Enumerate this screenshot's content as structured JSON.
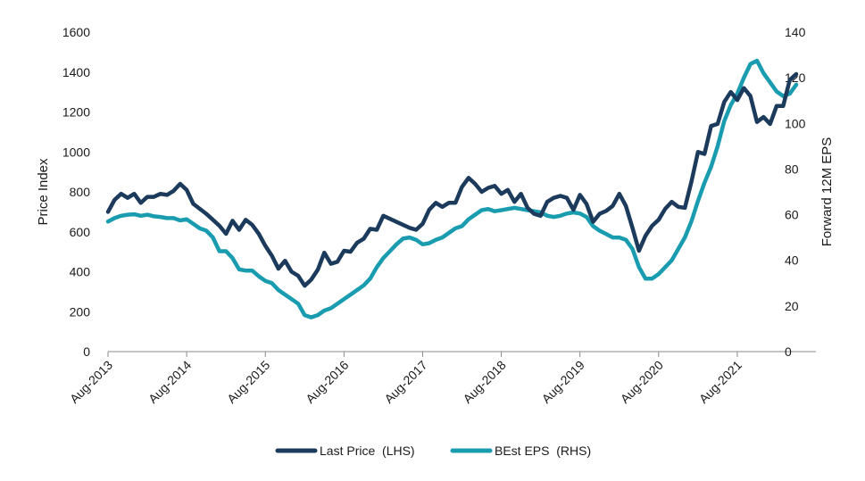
{
  "chart_data": {
    "type": "line",
    "xlabel": "",
    "y_left_label": "Price Index",
    "y_right_label": "Forward 12M EPS",
    "x_ticks": [
      "Aug-2013",
      "Aug-2014",
      "Aug-2015",
      "Aug-2016",
      "Aug-2017",
      "Aug-2018",
      "Aug-2019",
      "Aug-2020",
      "Aug-2021"
    ],
    "y_left_ticks": [
      "0",
      "200",
      "400",
      "600",
      "800",
      "1000",
      "1200",
      "1400",
      "1600"
    ],
    "y_right_ticks": [
      "0",
      "20",
      "40",
      "60",
      "80",
      "100",
      "120",
      "140"
    ],
    "y_left_lim": [
      0,
      1600
    ],
    "y_right_lim": [
      0,
      140
    ],
    "x_lim_months": [
      0,
      102
    ],
    "grid": false,
    "legend_position": "bottom",
    "series": [
      {
        "name": "Last Price  (LHS)",
        "axis": "left",
        "color": "#1b3a5c",
        "points": [
          [
            0,
            700
          ],
          [
            1,
            760
          ],
          [
            2,
            790
          ],
          [
            3,
            770
          ],
          [
            4,
            790
          ],
          [
            5,
            745
          ],
          [
            6,
            775
          ],
          [
            7,
            775
          ],
          [
            8,
            790
          ],
          [
            9,
            785
          ],
          [
            10,
            805
          ],
          [
            11,
            840
          ],
          [
            12,
            810
          ],
          [
            13,
            740
          ],
          [
            14,
            715
          ],
          [
            15,
            690
          ],
          [
            16,
            660
          ],
          [
            17,
            630
          ],
          [
            18,
            590
          ],
          [
            19,
            655
          ],
          [
            20,
            610
          ],
          [
            21,
            660
          ],
          [
            22,
            635
          ],
          [
            23,
            590
          ],
          [
            24,
            530
          ],
          [
            25,
            480
          ],
          [
            26,
            415
          ],
          [
            27,
            455
          ],
          [
            28,
            400
          ],
          [
            29,
            380
          ],
          [
            30,
            330
          ],
          [
            31,
            360
          ],
          [
            32,
            410
          ],
          [
            33,
            495
          ],
          [
            34,
            440
          ],
          [
            35,
            450
          ],
          [
            36,
            505
          ],
          [
            37,
            500
          ],
          [
            38,
            545
          ],
          [
            39,
            565
          ],
          [
            40,
            615
          ],
          [
            41,
            610
          ],
          [
            42,
            680
          ],
          [
            43,
            665
          ],
          [
            44,
            650
          ],
          [
            45,
            635
          ],
          [
            46,
            620
          ],
          [
            47,
            610
          ],
          [
            48,
            640
          ],
          [
            49,
            710
          ],
          [
            50,
            745
          ],
          [
            51,
            725
          ],
          [
            52,
            745
          ],
          [
            53,
            745
          ],
          [
            54,
            825
          ],
          [
            55,
            870
          ],
          [
            56,
            840
          ],
          [
            57,
            800
          ],
          [
            58,
            820
          ],
          [
            59,
            830
          ],
          [
            60,
            790
          ],
          [
            61,
            810
          ],
          [
            62,
            750
          ],
          [
            63,
            790
          ],
          [
            64,
            720
          ],
          [
            65,
            690
          ],
          [
            66,
            680
          ],
          [
            67,
            750
          ],
          [
            68,
            770
          ],
          [
            69,
            780
          ],
          [
            70,
            770
          ],
          [
            71,
            710
          ],
          [
            72,
            785
          ],
          [
            73,
            740
          ],
          [
            74,
            650
          ],
          [
            75,
            690
          ],
          [
            76,
            705
          ],
          [
            77,
            730
          ],
          [
            78,
            790
          ],
          [
            79,
            730
          ],
          [
            80,
            620
          ],
          [
            81,
            505
          ],
          [
            82,
            580
          ],
          [
            83,
            630
          ],
          [
            84,
            660
          ],
          [
            85,
            715
          ],
          [
            86,
            750
          ],
          [
            87,
            725
          ],
          [
            88,
            720
          ],
          [
            89,
            850
          ],
          [
            90,
            1000
          ],
          [
            91,
            990
          ],
          [
            92,
            1130
          ],
          [
            93,
            1140
          ],
          [
            94,
            1250
          ],
          [
            95,
            1300
          ],
          [
            96,
            1260
          ],
          [
            97,
            1320
          ],
          [
            98,
            1280
          ],
          [
            99,
            1150
          ],
          [
            100,
            1175
          ],
          [
            101,
            1140
          ],
          [
            102,
            1230
          ],
          [
            103,
            1230
          ],
          [
            104,
            1360
          ],
          [
            105,
            1390
          ]
        ]
      },
      {
        "name": "BEst EPS  (RHS)",
        "axis": "right",
        "color": "#1a9cb0",
        "points": [
          [
            0,
            57
          ],
          [
            1,
            58.5
          ],
          [
            2,
            59.5
          ],
          [
            3,
            60
          ],
          [
            4,
            60.2
          ],
          [
            5,
            59.5
          ],
          [
            6,
            60
          ],
          [
            7,
            59.3
          ],
          [
            8,
            59
          ],
          [
            9,
            58.5
          ],
          [
            10,
            58.5
          ],
          [
            11,
            57.5
          ],
          [
            12,
            58
          ],
          [
            13,
            56
          ],
          [
            14,
            54
          ],
          [
            15,
            53
          ],
          [
            16,
            50
          ],
          [
            17,
            44
          ],
          [
            18,
            44
          ],
          [
            19,
            41
          ],
          [
            20,
            36
          ],
          [
            21,
            35.5
          ],
          [
            22,
            35.5
          ],
          [
            23,
            33
          ],
          [
            24,
            31
          ],
          [
            25,
            30
          ],
          [
            26,
            27
          ],
          [
            27,
            25
          ],
          [
            28,
            23
          ],
          [
            29,
            21
          ],
          [
            30,
            16
          ],
          [
            31,
            15
          ],
          [
            32,
            16
          ],
          [
            33,
            18
          ],
          [
            34,
            19
          ],
          [
            35,
            21
          ],
          [
            36,
            23
          ],
          [
            37,
            25
          ],
          [
            38,
            27
          ],
          [
            39,
            29
          ],
          [
            40,
            32
          ],
          [
            41,
            37
          ],
          [
            42,
            41
          ],
          [
            43,
            44
          ],
          [
            44,
            47
          ],
          [
            45,
            49.5
          ],
          [
            46,
            50
          ],
          [
            47,
            49
          ],
          [
            48,
            47
          ],
          [
            49,
            47.5
          ],
          [
            50,
            49
          ],
          [
            51,
            50
          ],
          [
            52,
            52
          ],
          [
            53,
            54
          ],
          [
            54,
            55
          ],
          [
            55,
            58
          ],
          [
            56,
            60
          ],
          [
            57,
            62
          ],
          [
            58,
            62.5
          ],
          [
            59,
            61.5
          ],
          [
            60,
            62
          ],
          [
            61,
            62.5
          ],
          [
            62,
            63
          ],
          [
            63,
            62.5
          ],
          [
            64,
            62
          ],
          [
            65,
            61.5
          ],
          [
            66,
            61
          ],
          [
            67,
            59.5
          ],
          [
            68,
            59
          ],
          [
            69,
            59.5
          ],
          [
            70,
            60.5
          ],
          [
            71,
            61
          ],
          [
            72,
            60.5
          ],
          [
            73,
            59
          ],
          [
            74,
            55
          ],
          [
            75,
            53
          ],
          [
            76,
            51.5
          ],
          [
            77,
            50
          ],
          [
            78,
            50
          ],
          [
            79,
            49
          ],
          [
            80,
            45
          ],
          [
            81,
            37
          ],
          [
            82,
            32
          ],
          [
            83,
            32
          ],
          [
            84,
            34
          ],
          [
            85,
            37
          ],
          [
            86,
            40
          ],
          [
            87,
            45
          ],
          [
            88,
            50
          ],
          [
            89,
            57
          ],
          [
            90,
            66
          ],
          [
            91,
            74
          ],
          [
            92,
            81
          ],
          [
            93,
            90
          ],
          [
            94,
            101
          ],
          [
            95,
            108
          ],
          [
            96,
            113
          ],
          [
            97,
            120
          ],
          [
            98,
            126
          ],
          [
            99,
            127.5
          ],
          [
            100,
            122
          ],
          [
            101,
            118
          ],
          [
            102,
            114
          ],
          [
            103,
            112
          ],
          [
            104,
            113
          ],
          [
            105,
            117
          ]
        ]
      }
    ]
  }
}
